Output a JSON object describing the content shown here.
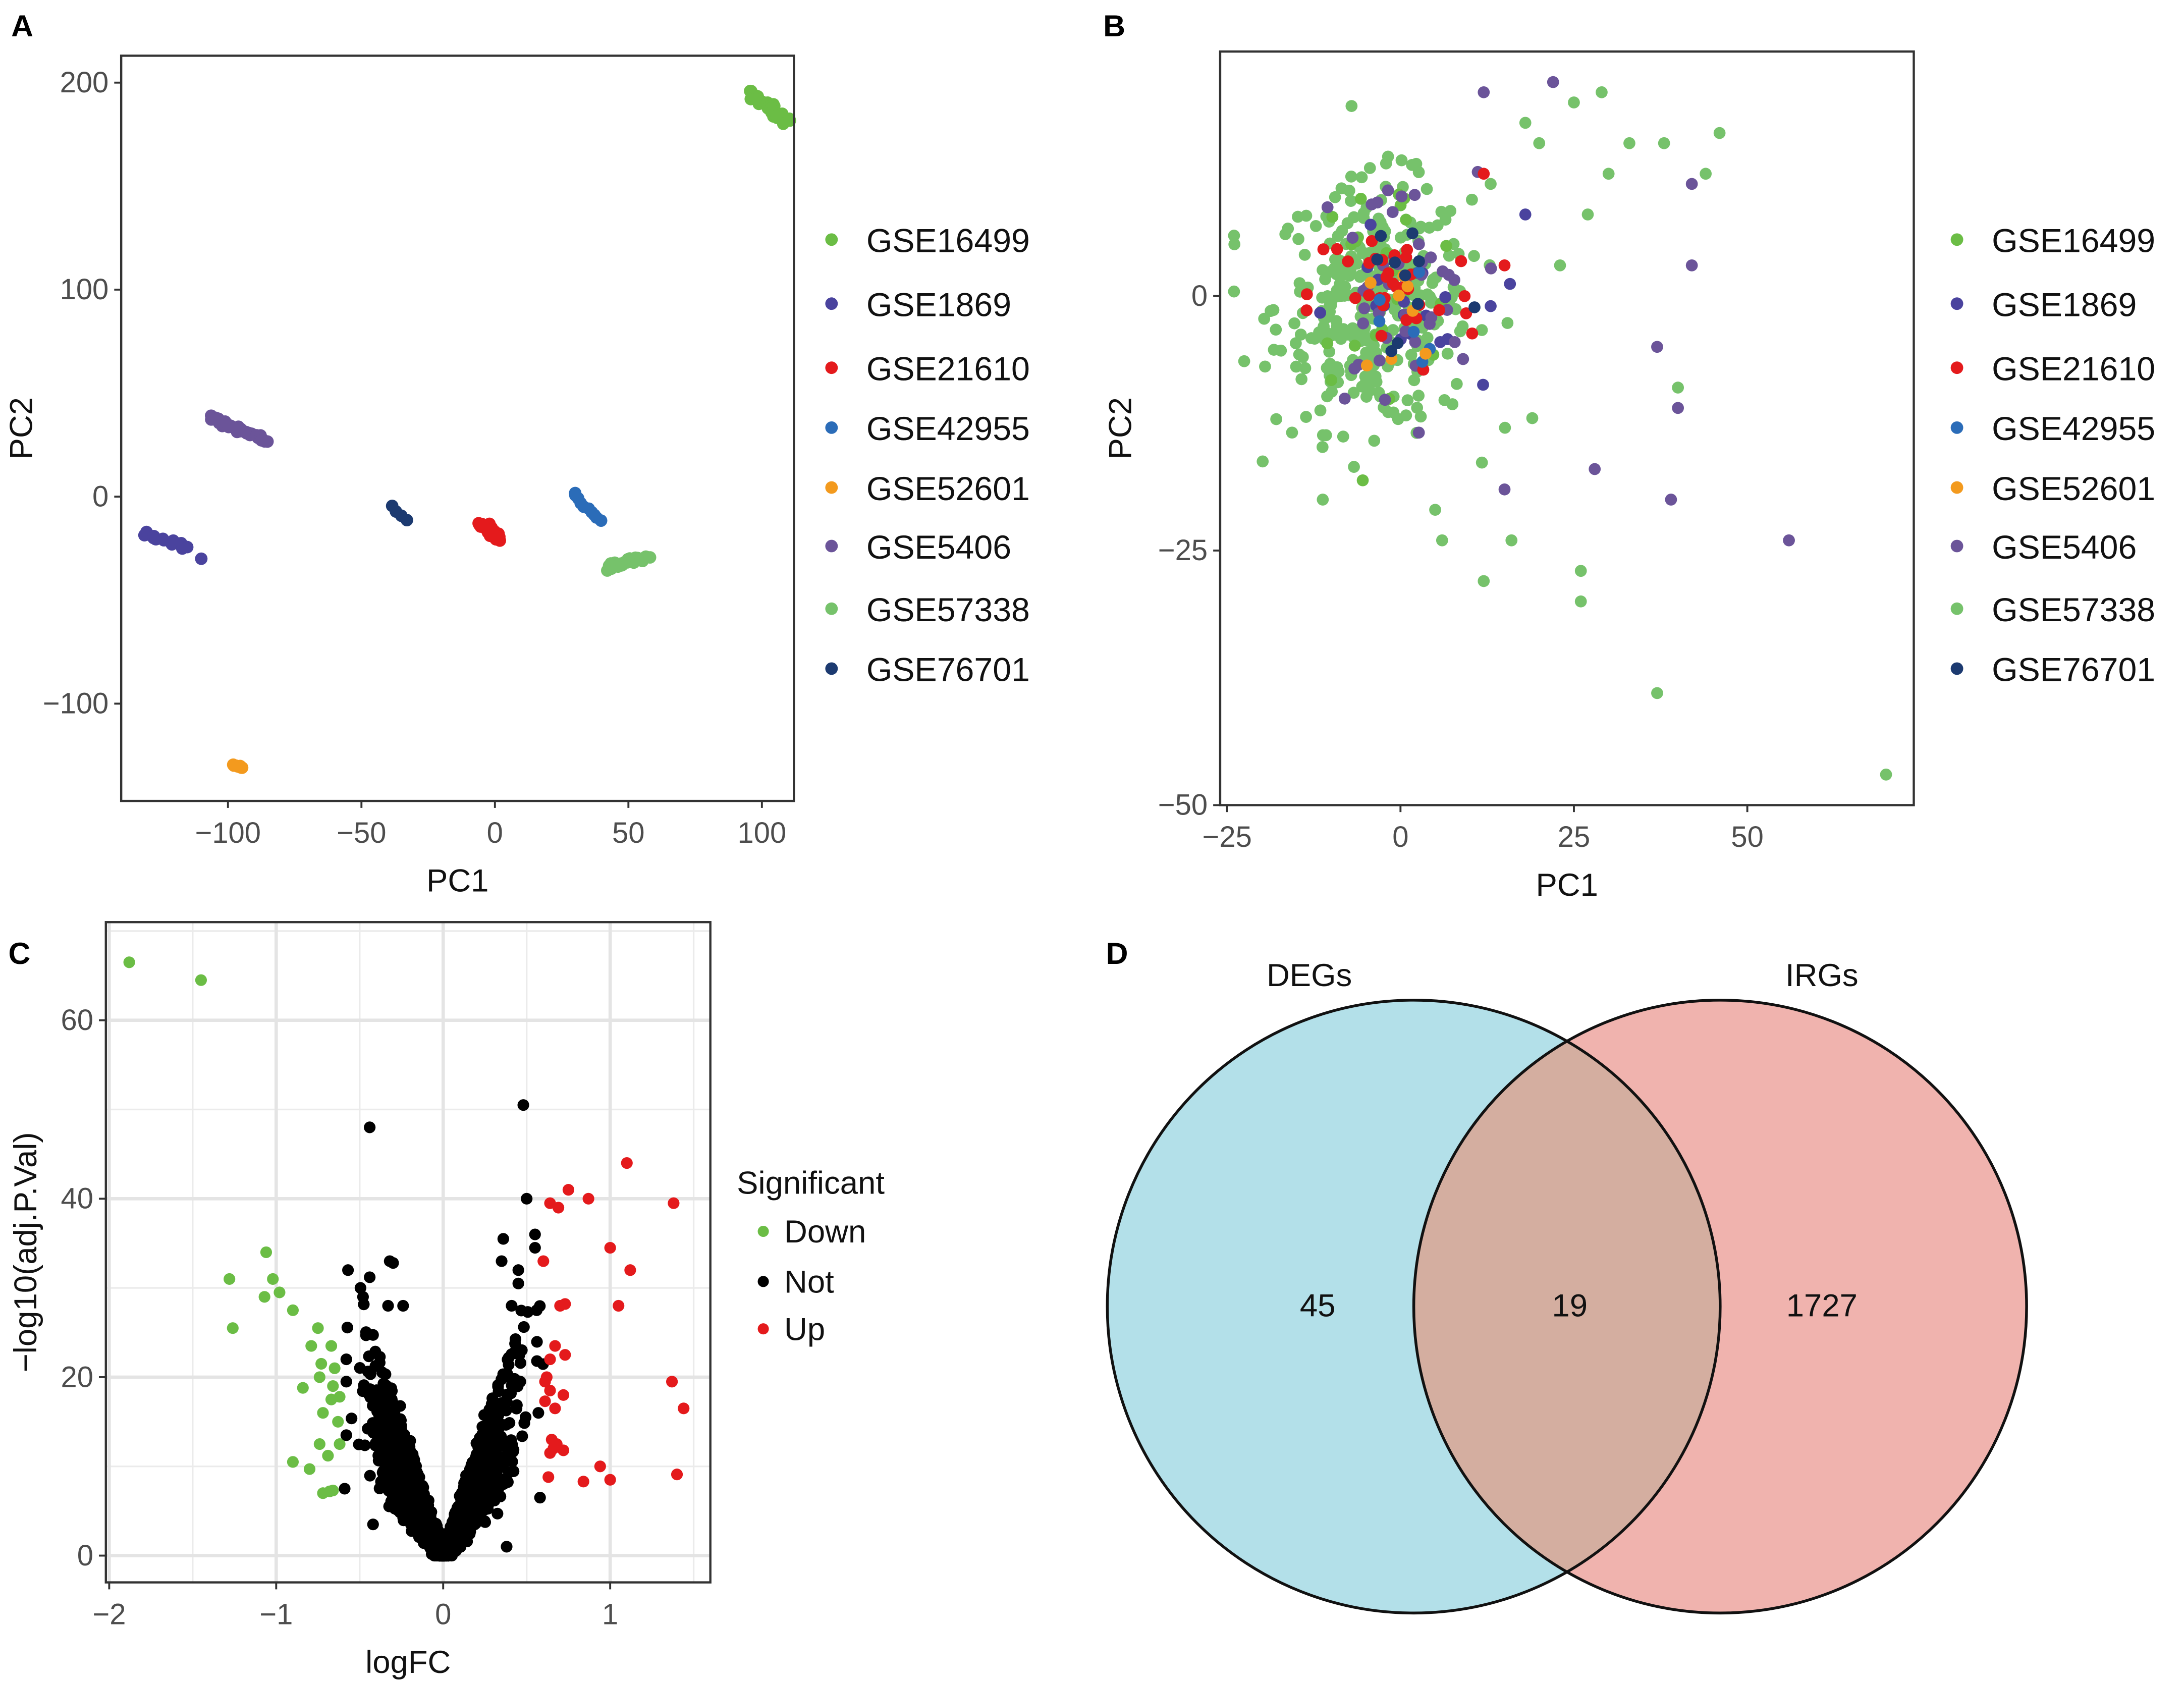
{
  "panels": {
    "a": "A",
    "b": "B",
    "c": "C",
    "d": "D"
  },
  "colors": {
    "GSE16499": "#6bbd45",
    "GSE1869": "#4a439e",
    "GSE21610": "#e41a1c",
    "GSE42955": "#2b6cb8",
    "GSE52601": "#f39a1e",
    "GSE5406": "#6b5499",
    "GSE57338": "#76c26b",
    "GSE76701": "#1c3a70",
    "Down": "#6bbd45",
    "Not": "#000000",
    "Up": "#e41a1c",
    "venn_left": "#b3e0e9",
    "venn_right": "#f0b3ae",
    "venn_overlap": "#d4aea0"
  },
  "chart_data": [
    {
      "type": "scatter",
      "panel": "A",
      "xlabel": "PC1",
      "ylabel": "PC2",
      "xlim": [
        -140,
        112
      ],
      "ylim": [
        -147,
        213
      ],
      "xticks": [
        -100,
        -50,
        0,
        50,
        100
      ],
      "xtick_labels": [
        "−100",
        "−50",
        "0",
        "50",
        "100"
      ],
      "yticks": [
        -100,
        0,
        100,
        200
      ],
      "ytick_labels": [
        "−100",
        "0",
        "100",
        "200"
      ],
      "legend_position": "right",
      "legend": [
        "GSE16499",
        "GSE1869",
        "GSE21610",
        "GSE42955",
        "GSE52601",
        "GSE5406",
        "GSE57338",
        "GSE76701"
      ],
      "clusters": [
        {
          "series": "GSE16499",
          "from": [
            96,
            195
          ],
          "to": [
            110,
            181
          ],
          "n": 30,
          "jitter": [
            2.5,
            2
          ]
        },
        {
          "series": "GSE1869",
          "from": [
            -131,
            -18
          ],
          "to": [
            -115,
            -25
          ],
          "n": 18,
          "jitter": [
            1.5,
            1.2
          ]
        },
        {
          "series": "GSE1869",
          "from": [
            -110,
            -30
          ],
          "to": [
            -110,
            -30
          ],
          "n": 1,
          "jitter": [
            0,
            0
          ]
        },
        {
          "series": "GSE21610",
          "from": [
            -5,
            -13
          ],
          "to": [
            2,
            -21
          ],
          "n": 30,
          "jitter": [
            2,
            2
          ]
        },
        {
          "series": "GSE42955",
          "from": [
            29,
            2
          ],
          "to": [
            39,
            -12
          ],
          "n": 10,
          "jitter": [
            1,
            1
          ]
        },
        {
          "series": "GSE52601",
          "from": [
            -98,
            -130
          ],
          "to": [
            -94,
            -131
          ],
          "n": 8,
          "jitter": [
            0.8,
            0.6
          ]
        },
        {
          "series": "GSE5406",
          "from": [
            -106,
            38
          ],
          "to": [
            -86,
            27
          ],
          "n": 35,
          "jitter": [
            1.5,
            1.3
          ]
        },
        {
          "series": "GSE57338",
          "from": [
            42,
            -34
          ],
          "to": [
            57,
            -29
          ],
          "n": 35,
          "jitter": [
            2,
            2
          ]
        },
        {
          "series": "GSE76701",
          "from": [
            -39,
            -5
          ],
          "to": [
            -33,
            -11
          ],
          "n": 4,
          "jitter": [
            0.7,
            0.7
          ]
        }
      ]
    },
    {
      "type": "scatter",
      "panel": "B",
      "xlabel": "PC1",
      "ylabel": "PC2",
      "xlim": [
        -26,
        74
      ],
      "ylim": [
        -50,
        24
      ],
      "xticks": [
        -25,
        0,
        25,
        50
      ],
      "xtick_labels": [
        "−25",
        "0",
        "25",
        "50"
      ],
      "yticks": [
        -50,
        -25,
        0
      ],
      "ytick_labels": [
        "−50",
        "−25",
        "0"
      ],
      "legend_position": "right",
      "legend": [
        "GSE16499",
        "GSE1869",
        "GSE21610",
        "GSE42955",
        "GSE52601",
        "GSE5406",
        "GSE57338",
        "GSE76701"
      ],
      "clouds": [
        {
          "series": "GSE57338",
          "center": [
            -4,
            -1
          ],
          "sd": [
            7,
            6
          ],
          "n": 330
        },
        {
          "series": "GSE16499",
          "center": [
            -2,
            2
          ],
          "sd": [
            6,
            5
          ],
          "n": 25
        },
        {
          "series": "GSE1869",
          "center": [
            0,
            -2
          ],
          "sd": [
            5,
            4
          ],
          "n": 18
        },
        {
          "series": "GSE5406",
          "center": [
            -1,
            0
          ],
          "sd": [
            6,
            6
          ],
          "n": 45
        },
        {
          "series": "GSE21610",
          "center": [
            -1,
            0
          ],
          "sd": [
            6,
            4
          ],
          "n": 35
        },
        {
          "series": "GSE42955",
          "center": [
            1,
            -3
          ],
          "sd": [
            4,
            4
          ],
          "n": 6
        },
        {
          "series": "GSE52601",
          "center": [
            2,
            -3
          ],
          "sd": [
            4,
            4
          ],
          "n": 8
        },
        {
          "series": "GSE76701",
          "center": [
            0,
            2
          ],
          "sd": [
            5,
            5
          ],
          "n": 10
        }
      ],
      "points": [
        {
          "series": "GSE57338",
          "x": 70,
          "y": -47
        },
        {
          "series": "GSE57338",
          "x": 37,
          "y": -39
        },
        {
          "series": "GSE57338",
          "x": 26,
          "y": -30
        },
        {
          "series": "GSE57338",
          "x": 26,
          "y": -27
        },
        {
          "series": "GSE57338",
          "x": 12,
          "y": -28
        },
        {
          "series": "GSE57338",
          "x": 16,
          "y": -24
        },
        {
          "series": "GSE57338",
          "x": 6,
          "y": -24
        },
        {
          "series": "GSE57338",
          "x": 5,
          "y": -21
        },
        {
          "series": "GSE57338",
          "x": 46,
          "y": 16
        },
        {
          "series": "GSE57338",
          "x": 44,
          "y": 12
        },
        {
          "series": "GSE57338",
          "x": 29,
          "y": 20
        },
        {
          "series": "GSE57338",
          "x": 25,
          "y": 19
        },
        {
          "series": "GSE57338",
          "x": 33,
          "y": 15
        },
        {
          "series": "GSE57338",
          "x": 38,
          "y": 15
        },
        {
          "series": "GSE57338",
          "x": 30,
          "y": 12
        },
        {
          "series": "GSE57338",
          "x": 27,
          "y": 8
        },
        {
          "series": "GSE57338",
          "x": 23,
          "y": 3
        },
        {
          "series": "GSE57338",
          "x": 40,
          "y": -9
        },
        {
          "series": "GSE57338",
          "x": 18,
          "y": 17
        },
        {
          "series": "GSE57338",
          "x": 20,
          "y": 15
        },
        {
          "series": "GSE57338",
          "x": 13,
          "y": 11
        },
        {
          "series": "GSE57338",
          "x": 19,
          "y": -12
        },
        {
          "series": "GSE5406",
          "x": 56,
          "y": -24
        },
        {
          "series": "GSE5406",
          "x": 39,
          "y": -20
        },
        {
          "series": "GSE5406",
          "x": 28,
          "y": -17
        },
        {
          "series": "GSE5406",
          "x": 37,
          "y": -5
        },
        {
          "series": "GSE5406",
          "x": 40,
          "y": -11
        },
        {
          "series": "GSE5406",
          "x": 42,
          "y": 3
        },
        {
          "series": "GSE5406",
          "x": 42,
          "y": 11
        },
        {
          "series": "GSE5406",
          "x": 15,
          "y": -19
        },
        {
          "series": "GSE5406",
          "x": 22,
          "y": 21
        },
        {
          "series": "GSE5406",
          "x": 12,
          "y": 20
        },
        {
          "series": "GSE1869",
          "x": 18,
          "y": 8
        },
        {
          "series": "GSE1869",
          "x": 13,
          "y": -1
        },
        {
          "series": "GSE21610",
          "x": 12,
          "y": 12
        },
        {
          "series": "GSE21610",
          "x": 15,
          "y": 3
        }
      ]
    },
    {
      "type": "scatter",
      "panel": "C",
      "title": "",
      "xlabel": "logFC",
      "ylabel": "−log10(adj.P.Val)",
      "xlim": [
        -2.02,
        1.6
      ],
      "ylim": [
        -3,
        71
      ],
      "xticks": [
        -2,
        -1,
        0,
        1
      ],
      "xtick_labels": [
        "−2",
        "−1",
        "0",
        "1"
      ],
      "yticks": [
        0,
        20,
        40,
        60
      ],
      "ytick_labels": [
        "0",
        "20",
        "40",
        "60"
      ],
      "grid": true,
      "legend_title": "Significant",
      "legend": [
        "Down",
        "Not",
        "Up"
      ],
      "legend_position": "right",
      "not_cloud": {
        "n": 3200,
        "sd_logfc": 0.17,
        "max_abs_logfc": 0.6
      },
      "series": [
        {
          "name": "Down",
          "points": [
            [
              -1.88,
              66.5
            ],
            [
              -1.45,
              64.5
            ],
            [
              -1.28,
              31
            ],
            [
              -1.26,
              25.5
            ],
            [
              -1.06,
              34
            ],
            [
              -1.02,
              31
            ],
            [
              -1.07,
              29
            ],
            [
              -0.98,
              29.5
            ],
            [
              -0.9,
              27.5
            ],
            [
              -0.75,
              25.5
            ],
            [
              -0.79,
              23.5
            ],
            [
              -0.67,
              23.5
            ],
            [
              -0.73,
              21.5
            ],
            [
              -0.65,
              21
            ],
            [
              -0.74,
              20
            ],
            [
              -0.84,
              18.8
            ],
            [
              -0.66,
              19
            ],
            [
              -0.67,
              17.5
            ],
            [
              -0.62,
              17.8
            ],
            [
              -0.72,
              16
            ],
            [
              -0.63,
              15
            ],
            [
              -0.74,
              12.5
            ],
            [
              -0.62,
              12.5
            ],
            [
              -0.69,
              11.2
            ],
            [
              -0.9,
              10.5
            ],
            [
              -0.8,
              9.7
            ],
            [
              -0.68,
              7.2
            ],
            [
              -0.72,
              7
            ],
            [
              -0.66,
              7.3
            ]
          ]
        },
        {
          "name": "Up",
          "points": [
            [
              1.1,
              44
            ],
            [
              0.75,
              41
            ],
            [
              0.87,
              40
            ],
            [
              0.64,
              39.5
            ],
            [
              0.69,
              39
            ],
            [
              1.38,
              39.5
            ],
            [
              1.0,
              34.5
            ],
            [
              1.12,
              32
            ],
            [
              0.6,
              33
            ],
            [
              0.7,
              28
            ],
            [
              0.73,
              28.2
            ],
            [
              1.05,
              28
            ],
            [
              0.67,
              23.5
            ],
            [
              0.73,
              22.5
            ],
            [
              0.64,
              22
            ],
            [
              0.62,
              20
            ],
            [
              0.61,
              19.5
            ],
            [
              1.37,
              19.5
            ],
            [
              0.64,
              18.5
            ],
            [
              0.72,
              18
            ],
            [
              0.61,
              17.3
            ],
            [
              0.67,
              16.5
            ],
            [
              1.44,
              16.5
            ],
            [
              0.65,
              13
            ],
            [
              0.68,
              12.5
            ],
            [
              0.66,
              12
            ],
            [
              0.72,
              11.8
            ],
            [
              0.64,
              11.5
            ],
            [
              0.94,
              10
            ],
            [
              1.0,
              8.5
            ],
            [
              0.84,
              8.3
            ],
            [
              0.63,
              8.8
            ],
            [
              1.4,
              9.1
            ]
          ]
        },
        {
          "name": "Not",
          "points": [
            [
              -0.44,
              48
            ],
            [
              0.48,
              50.5
            ],
            [
              0.5,
              40
            ],
            [
              0.36,
              35.5
            ],
            [
              0.55,
              36
            ],
            [
              0.55,
              34.5
            ],
            [
              0.35,
              33
            ],
            [
              0.45,
              32
            ],
            [
              0.45,
              30.5
            ],
            [
              0.41,
              28
            ],
            [
              0.56,
              27.5
            ],
            [
              -0.57,
              32
            ],
            [
              -0.44,
              31.2
            ],
            [
              -0.32,
              33
            ],
            [
              -0.3,
              32.8
            ],
            [
              -0.48,
              29
            ],
            [
              -0.33,
              28
            ],
            [
              -0.24,
              28
            ],
            [
              -0.58,
              22
            ],
            [
              -0.58,
              19.5
            ],
            [
              -0.58,
              13.5
            ],
            [
              -0.59,
              7.5
            ],
            [
              0.58,
              6.5
            ],
            [
              0.57,
              16
            ],
            [
              0.38,
              1
            ],
            [
              -0.42,
              3.5
            ]
          ]
        }
      ]
    },
    {
      "type": "venn",
      "panel": "D",
      "sets": [
        "DEGs",
        "IRGs"
      ],
      "values": {
        "DEGs_only": "45",
        "both": "19",
        "IRGs_only": "1727"
      }
    }
  ]
}
